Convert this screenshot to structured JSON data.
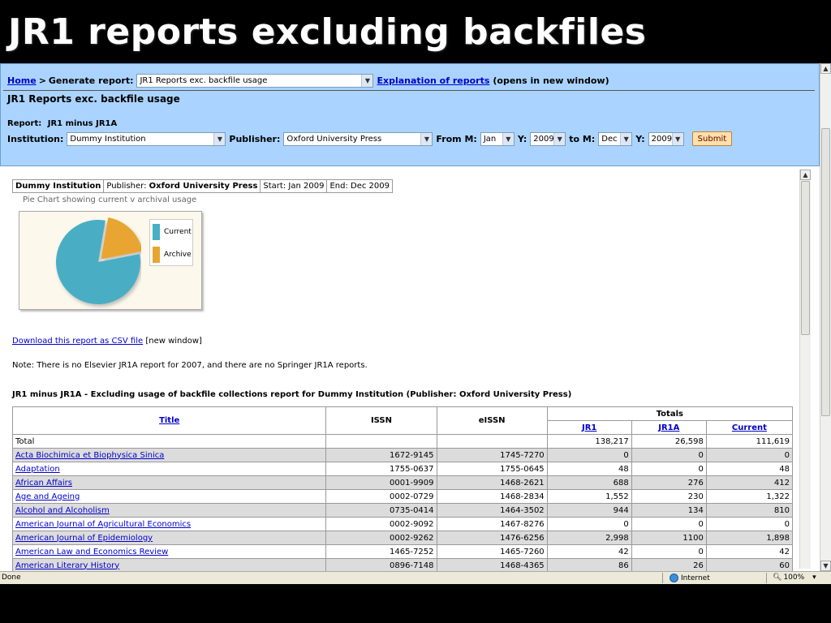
{
  "slide": {
    "title": "JR1 reports excluding backfiles"
  },
  "nav": {
    "home_label": "Home",
    "separator": ">",
    "generate_label": "Generate report:",
    "report_select_value": "JR1 Reports exc. backfile usage",
    "explanation_link": "Explanation of reports",
    "explanation_suffix": "(opens in new window)"
  },
  "heading": "JR1 Reports exc. backfile usage",
  "report_type": {
    "label": "Report:",
    "value": "JR1 minus JR1A"
  },
  "filters": {
    "institution_label": "Institution:",
    "institution_value": "Dummy Institution",
    "publisher_label": "Publisher:",
    "publisher_value": "Oxford University Press",
    "from_m_label": "From M:",
    "from_m_value": "Jan",
    "from_y_label": "Y:",
    "from_y_value": "2009",
    "to_m_label": "to M:",
    "to_m_value": "Dec",
    "to_y_label": "Y:",
    "to_y_value": "2009",
    "submit_label": "Submit"
  },
  "summary": {
    "institution": "Dummy Institution",
    "publisher_label": "Publisher:",
    "publisher_value": "Oxford University Press",
    "start": "Start: Jan 2009",
    "end": "End: Dec 2009"
  },
  "chart_data": {
    "type": "pie",
    "title": "Pie Chart showing current v archival usage",
    "categories": [
      "Current",
      "Archive"
    ],
    "values": [
      111619,
      26598
    ],
    "colors": [
      "#4aaec4",
      "#e8a530"
    ],
    "legend": "right"
  },
  "csv": {
    "link": "Download this report as CSV file",
    "suffix": "[new window]"
  },
  "note": "Note: There is no Elsevier JR1A report for 2007, and there are no Springer JR1A reports.",
  "table": {
    "title": "JR1 minus JR1A - Excluding usage of backfile collections report for Dummy Institution (Publisher: Oxford University Press)",
    "headers": {
      "title": "Title",
      "issn": "ISSN",
      "eissn": "eISSN",
      "totals": "Totals",
      "jr1": "JR1",
      "jr1a": "JR1A",
      "current": "Current"
    },
    "total_row": {
      "label": "Total",
      "jr1": "138,217",
      "jr1a": "26,598",
      "current": "111,619"
    },
    "rows": [
      {
        "title": "Acta Biochimica et Biophysica Sinica",
        "issn": "1672-9145",
        "eissn": "1745-7270",
        "jr1": "0",
        "jr1a": "0",
        "current": "0"
      },
      {
        "title": "Adaptation",
        "issn": "1755-0637",
        "eissn": "1755-0645",
        "jr1": "48",
        "jr1a": "0",
        "current": "48"
      },
      {
        "title": "African Affairs",
        "issn": "0001-9909",
        "eissn": "1468-2621",
        "jr1": "688",
        "jr1a": "276",
        "current": "412"
      },
      {
        "title": "Age and Ageing",
        "issn": "0002-0729",
        "eissn": "1468-2834",
        "jr1": "1,552",
        "jr1a": "230",
        "current": "1,322"
      },
      {
        "title": "Alcohol and Alcoholism",
        "issn": "0735-0414",
        "eissn": "1464-3502",
        "jr1": "944",
        "jr1a": "134",
        "current": "810"
      },
      {
        "title": "American Journal of Agricultural Economics",
        "issn": "0002-9092",
        "eissn": "1467-8276",
        "jr1": "0",
        "jr1a": "0",
        "current": "0"
      },
      {
        "title": "American Journal of Epidemiology",
        "issn": "0002-9262",
        "eissn": "1476-6256",
        "jr1": "2,998",
        "jr1a": "1100",
        "current": "1,898"
      },
      {
        "title": "American Law and Economics Review",
        "issn": "1465-7252",
        "eissn": "1465-7260",
        "jr1": "42",
        "jr1a": "0",
        "current": "42"
      },
      {
        "title": "American Literary History",
        "issn": "0896-7148",
        "eissn": "1468-4365",
        "jr1": "86",
        "jr1a": "26",
        "current": "60"
      }
    ]
  },
  "status": {
    "left": "Done",
    "zone": "Internet",
    "zoom": "100%"
  }
}
